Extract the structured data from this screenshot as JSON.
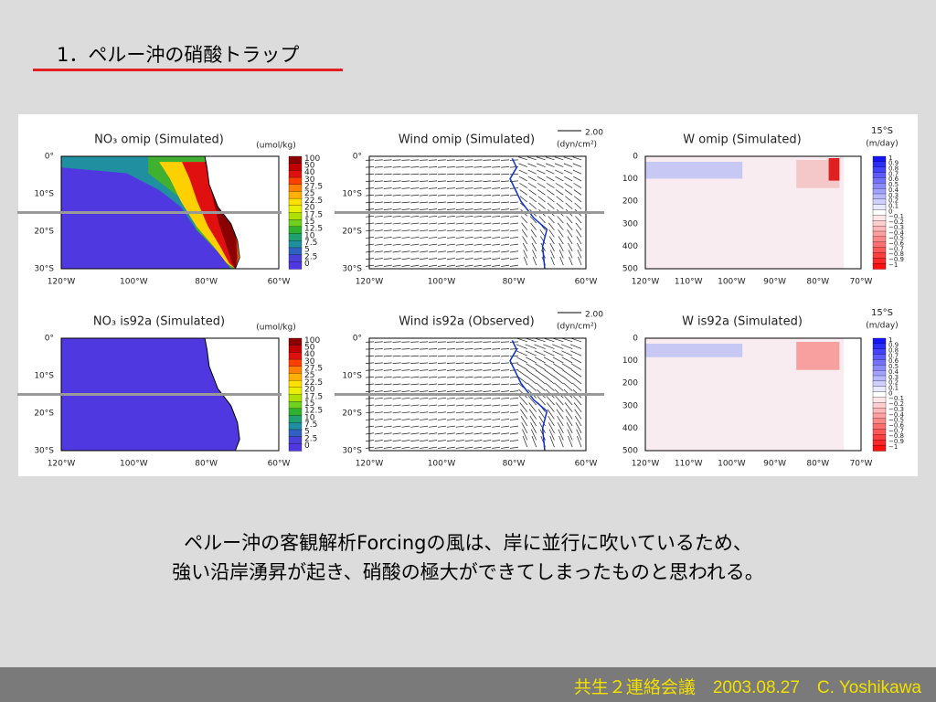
{
  "title": "1．ペルー沖の硝酸トラップ",
  "figure": {
    "panels": [
      {
        "title": "NO₃ omip (Simulated)",
        "unit": "(umol/kg)",
        "yticks": [
          "0°",
          "10°S",
          "20°S",
          "30°S"
        ],
        "xticks": [
          "120°W",
          "100°W",
          "80°W",
          "60°W"
        ],
        "colorbar": [
          "100",
          "50",
          "40",
          "30",
          "27.5",
          "25",
          "22.5",
          "20",
          "17.5",
          "15",
          "12.5",
          "10",
          "7.5",
          "5",
          "2.5",
          "0"
        ]
      },
      {
        "title": "Wind omip (Simulated)",
        "scale": "2.00",
        "unit": "(dyn/cm²)",
        "yticks": [
          "0°",
          "10°S",
          "20°S",
          "30°S"
        ],
        "xticks": [
          "120°W",
          "100°W",
          "80°W",
          "60°W"
        ]
      },
      {
        "title": "W omip (Simulated)",
        "section": "15°S",
        "unit": "(m/day)",
        "yticks": [
          "0",
          "100",
          "200",
          "300",
          "400",
          "500"
        ],
        "xticks": [
          "120°W",
          "110°W",
          "100°W",
          "90°W",
          "80°W",
          "70°W"
        ],
        "colorbar": [
          "1",
          "0.9",
          "0.8",
          "0.7",
          "0.6",
          "0.5",
          "0.4",
          "0.3",
          "0.2",
          "0.1",
          "0",
          "−0.1",
          "−0.2",
          "−0.3",
          "−0.4",
          "−0.5",
          "−0.6",
          "−0.7",
          "−0.8",
          "−0.9",
          "−1"
        ]
      },
      {
        "title": "NO₃ is92a (Simulated)",
        "unit": "(umol/kg)",
        "yticks": [
          "0°",
          "10°S",
          "20°S",
          "30°S"
        ],
        "xticks": [
          "120°W",
          "100°W",
          "80°W",
          "60°W"
        ],
        "colorbar": [
          "100",
          "50",
          "40",
          "30",
          "27.5",
          "25",
          "22.5",
          "20",
          "17.5",
          "15",
          "12.5",
          "10",
          "7.5",
          "5",
          "2.5",
          "0"
        ]
      },
      {
        "title": "Wind is92a (Observed)",
        "scale": "2.00",
        "unit": "(dyn/cm²)",
        "yticks": [
          "0°",
          "10°S",
          "20°S",
          "30°S"
        ],
        "xticks": [
          "120°W",
          "100°W",
          "80°W",
          "60°W"
        ]
      },
      {
        "title": "W is92a (Simulated)",
        "section": "15°S",
        "unit": "(m/day)",
        "yticks": [
          "0",
          "100",
          "200",
          "300",
          "400",
          "500"
        ],
        "xticks": [
          "120°W",
          "110°W",
          "100°W",
          "90°W",
          "80°W",
          "70°W"
        ],
        "colorbar": [
          "1",
          "0.9",
          "0.8",
          "0.7",
          "0.6",
          "0.5",
          "0.4",
          "0.3",
          "0.2",
          "0.1",
          "0",
          "−0.1",
          "−0.2",
          "−0.3",
          "−0.4",
          "−0.5",
          "−0.6",
          "−0.7",
          "−0.8",
          "−0.9",
          "−1"
        ]
      }
    ]
  },
  "caption": [
    "ペルー沖の客観解析Forcingの風は、岸に並行に吹いているため、",
    "強い沿岸湧昇が起き、硝酸の極大ができてしまったものと思われる。"
  ],
  "footer": "共生２連絡会議　2003.08.27　C. Yoshikawa"
}
